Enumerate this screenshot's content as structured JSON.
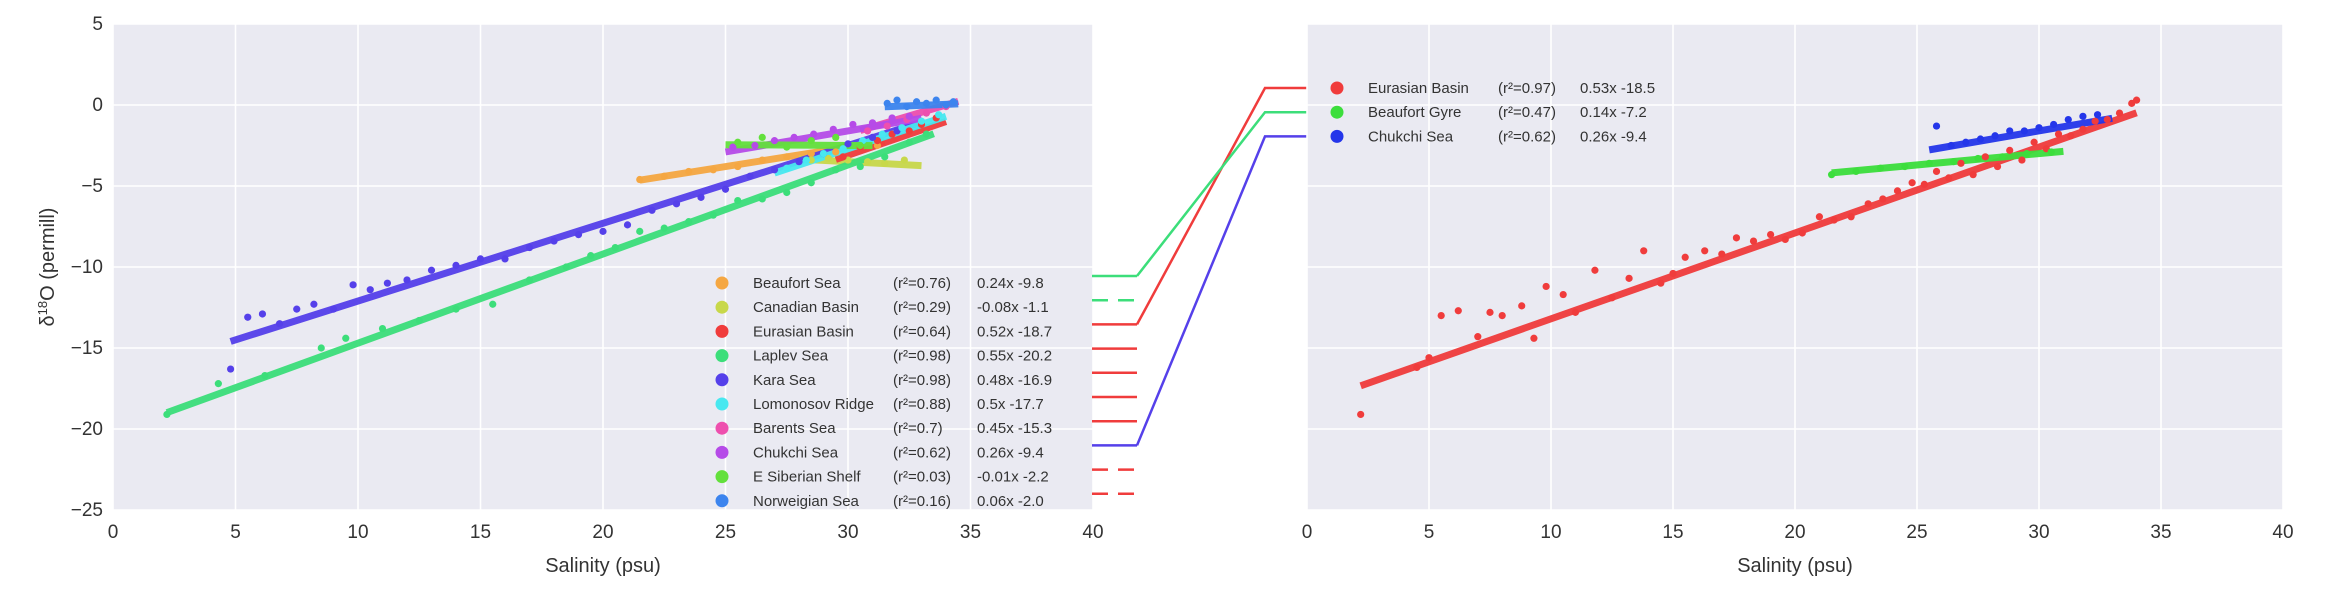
{
  "chart_data": [
    {
      "type": "scatter",
      "title": "",
      "xlabel": "Salinity (psu)",
      "ylabel_prefix": "δ",
      "ylabel_sup": "18",
      "ylabel_suffix": "O (permill)",
      "xlim": [
        0,
        40
      ],
      "ylim": [
        -25,
        5
      ],
      "xticks": [
        0,
        5,
        10,
        15,
        20,
        25,
        30,
        35,
        40
      ],
      "yticks": [
        5,
        0,
        -5,
        -10,
        -15,
        -20,
        -25
      ],
      "grid": true,
      "legend_position": "lower-right",
      "series": [
        {
          "name": "Beaufort Sea",
          "r2": "(r²=0.76)",
          "fit_label": "0.24x -9.8",
          "color": "#f5a742",
          "slope": 0.24,
          "intercept": -9.8,
          "fit_x": [
            21.5,
            31.5
          ],
          "points": [
            [
              21.5,
              -4.6
            ],
            [
              22.5,
              -4.4
            ],
            [
              23.5,
              -4.1
            ],
            [
              24.5,
              -4.0
            ],
            [
              25.5,
              -3.8
            ],
            [
              26.5,
              -3.4
            ],
            [
              27.5,
              -3.2
            ],
            [
              28.5,
              -3.0
            ],
            [
              29.5,
              -2.9
            ],
            [
              30.5,
              -2.6
            ],
            [
              31.2,
              -2.5
            ]
          ]
        },
        {
          "name": "Canadian Basin",
          "r2": "(r²=0.29)",
          "fit_label": "-0.08x -1.1",
          "color": "#c8d84a",
          "slope": -0.08,
          "intercept": -1.1,
          "fit_x": [
            28.0,
            33.0
          ],
          "points": [
            [
              28.5,
              -3.4
            ],
            [
              29.2,
              -3.3
            ],
            [
              30.0,
              -3.4
            ],
            [
              30.8,
              -3.5
            ],
            [
              31.5,
              -3.6
            ],
            [
              32.3,
              -3.4
            ]
          ]
        },
        {
          "name": "Eurasian Basin",
          "r2": "(r²=0.64)",
          "fit_label": "0.52x -18.7",
          "color": "#f03c3c",
          "slope": 0.52,
          "intercept": -18.7,
          "fit_x": [
            29.5,
            34.0
          ],
          "points": [
            [
              29.8,
              -3.2
            ],
            [
              30.5,
              -2.6
            ],
            [
              31.2,
              -2.2
            ],
            [
              31.8,
              -1.8
            ],
            [
              32.5,
              -1.6
            ],
            [
              33.0,
              -1.2
            ],
            [
              33.6,
              -0.8
            ]
          ]
        },
        {
          "name": "Laplev Sea",
          "r2": "(r²=0.98)",
          "fit_label": "0.55x -20.2",
          "color": "#3cde7a",
          "slope": 0.55,
          "intercept": -20.2,
          "fit_x": [
            2.2,
            33.5
          ],
          "points": [
            [
              2.2,
              -19.1
            ],
            [
              4.3,
              -17.2
            ],
            [
              6.2,
              -16.7
            ],
            [
              8.5,
              -15.0
            ],
            [
              9.5,
              -14.4
            ],
            [
              11.0,
              -13.8
            ],
            [
              12.5,
              -13.3
            ],
            [
              14.0,
              -12.6
            ],
            [
              15.5,
              -12.3
            ],
            [
              17.0,
              -10.8
            ],
            [
              18.5,
              -10.0
            ],
            [
              19.5,
              -9.3
            ],
            [
              20.5,
              -8.8
            ],
            [
              21.5,
              -7.8
            ],
            [
              22.5,
              -7.6
            ],
            [
              23.5,
              -7.2
            ],
            [
              24.5,
              -6.8
            ],
            [
              25.5,
              -5.9
            ],
            [
              26.5,
              -5.8
            ],
            [
              27.5,
              -5.4
            ],
            [
              28.5,
              -4.8
            ],
            [
              29.5,
              -4.0
            ],
            [
              30.5,
              -3.8
            ],
            [
              31.5,
              -3.2
            ],
            [
              32.5,
              -2.3
            ],
            [
              33.2,
              -1.8
            ]
          ]
        },
        {
          "name": "Kara Sea",
          "r2": "(r²=0.98)",
          "fit_label": "0.48x -16.9",
          "color": "#5540ea",
          "slope": 0.48,
          "intercept": -16.9,
          "fit_x": [
            4.8,
            33.0
          ],
          "points": [
            [
              4.8,
              -16.3
            ],
            [
              5.5,
              -13.1
            ],
            [
              6.1,
              -12.9
            ],
            [
              6.8,
              -13.5
            ],
            [
              7.5,
              -12.6
            ],
            [
              8.2,
              -12.3
            ],
            [
              9.0,
              -12.6
            ],
            [
              9.8,
              -11.1
            ],
            [
              10.5,
              -11.4
            ],
            [
              11.2,
              -11.0
            ],
            [
              12.0,
              -10.8
            ],
            [
              13.0,
              -10.2
            ],
            [
              14.0,
              -9.9
            ],
            [
              15.0,
              -9.5
            ],
            [
              16.0,
              -9.5
            ],
            [
              17.0,
              -8.8
            ],
            [
              18.0,
              -8.4
            ],
            [
              19.0,
              -8.0
            ],
            [
              20.0,
              -7.8
            ],
            [
              21.0,
              -7.4
            ],
            [
              22.0,
              -6.5
            ],
            [
              23.0,
              -6.1
            ],
            [
              24.0,
              -5.7
            ],
            [
              25.0,
              -5.2
            ],
            [
              26.0,
              -4.4
            ],
            [
              27.0,
              -4.0
            ],
            [
              28.0,
              -3.5
            ],
            [
              29.0,
              -3.0
            ],
            [
              30.0,
              -2.4
            ],
            [
              31.0,
              -2.0
            ],
            [
              32.0,
              -1.6
            ]
          ]
        },
        {
          "name": "Lomonosov Ridge",
          "r2": "(r²=0.88)",
          "fit_label": "0.5x -17.7",
          "color": "#48e8f0",
          "slope": 0.5,
          "intercept": -17.7,
          "fit_x": [
            27.0,
            34.0
          ],
          "points": [
            [
              27.5,
              -3.9
            ],
            [
              28.3,
              -3.4
            ],
            [
              29.0,
              -3.0
            ],
            [
              29.8,
              -2.7
            ],
            [
              30.6,
              -2.2
            ],
            [
              31.4,
              -1.8
            ],
            [
              32.2,
              -1.4
            ],
            [
              33.0,
              -1.0
            ],
            [
              33.7,
              -0.6
            ]
          ]
        },
        {
          "name": "Barents Sea",
          "r2": "(r²=0.7)",
          "fit_label": "0.45x -15.3",
          "color": "#ee4fae",
          "slope": 0.45,
          "intercept": -15.3,
          "fit_x": [
            30.5,
            34.5
          ],
          "points": [
            [
              30.8,
              -1.6
            ],
            [
              31.6,
              -1.3
            ],
            [
              32.4,
              -0.9
            ],
            [
              33.2,
              -0.5
            ],
            [
              34.0,
              -0.1
            ]
          ]
        },
        {
          "name": "Chukchi Sea",
          "r2": "(r²=0.62)",
          "fit_label": "0.26x -9.4",
          "color": "#b64be8",
          "slope": 0.26,
          "intercept": -9.4,
          "fit_x": [
            25.0,
            33.0
          ],
          "points": [
            [
              25.3,
              -2.6
            ],
            [
              26.2,
              -2.5
            ],
            [
              27.0,
              -2.2
            ],
            [
              27.8,
              -2.0
            ],
            [
              28.6,
              -1.8
            ],
            [
              29.4,
              -1.5
            ],
            [
              30.2,
              -1.2
            ],
            [
              31.0,
              -1.1
            ],
            [
              31.8,
              -0.8
            ],
            [
              32.5,
              -0.7
            ]
          ]
        },
        {
          "name": "E Siberian Shelf",
          "r2": "(r²=0.03)",
          "fit_label": "-0.01x -2.2",
          "color": "#63e03c",
          "slope": -0.01,
          "intercept": -2.2,
          "fit_x": [
            25.0,
            31.0
          ],
          "points": [
            [
              25.5,
              -2.3
            ],
            [
              26.5,
              -2.0
            ],
            [
              27.5,
              -2.6
            ],
            [
              28.5,
              -2.2
            ],
            [
              29.5,
              -2.0
            ],
            [
              30.5,
              -2.5
            ]
          ]
        },
        {
          "name": "Norweigian Sea",
          "r2": "(r²=0.16)",
          "fit_label": "0.06x -2.0",
          "color": "#3c84ee",
          "slope": 0.06,
          "intercept": -2.0,
          "fit_x": [
            31.5,
            34.5
          ],
          "points": [
            [
              31.6,
              0.1
            ],
            [
              32.0,
              0.3
            ],
            [
              32.4,
              -0.1
            ],
            [
              32.8,
              0.2
            ],
            [
              33.2,
              0.1
            ],
            [
              33.6,
              0.3
            ],
            [
              34.0,
              0.0
            ],
            [
              34.3,
              0.2
            ]
          ]
        }
      ]
    },
    {
      "type": "scatter",
      "title": "",
      "xlabel": "Salinity (psu)",
      "xlim": [
        0,
        40
      ],
      "ylim": [
        -25,
        5
      ],
      "xticks": [
        0,
        5,
        10,
        15,
        20,
        25,
        30,
        35,
        40
      ],
      "yticks": [
        5,
        0,
        -5,
        -10,
        -15,
        -20,
        -25
      ],
      "grid": true,
      "legend_position": "upper-left",
      "series": [
        {
          "name": "Eurasian Basin",
          "r2": "(r²=0.97)",
          "fit_label": "0.53x -18.5",
          "color": "#f03c3c",
          "slope": 0.53,
          "intercept": -18.5,
          "fit_x": [
            2.2,
            34.0
          ],
          "points": [
            [
              2.2,
              -19.1
            ],
            [
              4.5,
              -16.2
            ],
            [
              5.0,
              -15.6
            ],
            [
              5.5,
              -13.0
            ],
            [
              6.2,
              -12.7
            ],
            [
              7.0,
              -14.3
            ],
            [
              7.5,
              -12.8
            ],
            [
              8.0,
              -13.0
            ],
            [
              8.8,
              -12.4
            ],
            [
              9.3,
              -14.4
            ],
            [
              9.8,
              -11.2
            ],
            [
              10.5,
              -11.7
            ],
            [
              11.0,
              -12.8
            ],
            [
              11.8,
              -10.2
            ],
            [
              12.5,
              -11.9
            ],
            [
              13.2,
              -10.7
            ],
            [
              13.8,
              -9.0
            ],
            [
              14.5,
              -11.0
            ],
            [
              15.0,
              -10.4
            ],
            [
              15.5,
              -9.4
            ],
            [
              16.3,
              -9.0
            ],
            [
              17.0,
              -9.2
            ],
            [
              17.6,
              -8.2
            ],
            [
              18.3,
              -8.4
            ],
            [
              19.0,
              -8.0
            ],
            [
              19.6,
              -8.3
            ],
            [
              20.3,
              -7.9
            ],
            [
              21.0,
              -6.9
            ],
            [
              21.6,
              -7.1
            ],
            [
              22.3,
              -6.9
            ],
            [
              23.0,
              -6.1
            ],
            [
              23.6,
              -5.8
            ],
            [
              24.2,
              -5.3
            ],
            [
              24.8,
              -4.8
            ],
            [
              25.3,
              -4.9
            ],
            [
              25.8,
              -4.1
            ],
            [
              26.3,
              -4.5
            ],
            [
              26.8,
              -3.6
            ],
            [
              27.3,
              -4.3
            ],
            [
              27.8,
              -3.2
            ],
            [
              28.3,
              -3.8
            ],
            [
              28.8,
              -2.8
            ],
            [
              29.3,
              -3.4
            ],
            [
              29.8,
              -2.3
            ],
            [
              30.3,
              -2.7
            ],
            [
              30.8,
              -1.8
            ],
            [
              31.3,
              -1.9
            ],
            [
              31.8,
              -1.5
            ],
            [
              32.3,
              -1.0
            ],
            [
              32.8,
              -0.9
            ],
            [
              33.3,
              -0.5
            ],
            [
              33.8,
              0.1
            ],
            [
              34.0,
              0.3
            ]
          ]
        },
        {
          "name": "Beaufort Gyre",
          "r2": "(r²=0.47)",
          "fit_label": "0.14x -7.2",
          "color": "#3cde3c",
          "slope": 0.14,
          "intercept": -7.2,
          "fit_x": [
            21.5,
            31.0
          ],
          "points": [
            [
              21.5,
              -4.3
            ],
            [
              22.5,
              -4.1
            ],
            [
              23.5,
              -3.9
            ],
            [
              24.5,
              -3.8
            ],
            [
              25.5,
              -3.6
            ],
            [
              26.5,
              -3.5
            ],
            [
              27.5,
              -3.3
            ],
            [
              28.5,
              -3.2
            ],
            [
              29.5,
              -3.0
            ],
            [
              30.5,
              -2.9
            ]
          ]
        },
        {
          "name": "Chukchi Sea",
          "r2": "(r²=0.62)",
          "fit_label": "0.26x -9.4",
          "color": "#2436ea",
          "slope": 0.26,
          "intercept": -9.4,
          "fit_x": [
            25.5,
            33.0
          ],
          "points": [
            [
              25.8,
              -1.3
            ],
            [
              26.4,
              -2.5
            ],
            [
              27.0,
              -2.3
            ],
            [
              27.6,
              -2.1
            ],
            [
              28.2,
              -1.9
            ],
            [
              28.8,
              -1.6
            ],
            [
              29.4,
              -1.6
            ],
            [
              30.0,
              -1.4
            ],
            [
              30.6,
              -1.2
            ],
            [
              31.2,
              -0.9
            ],
            [
              31.8,
              -0.7
            ],
            [
              32.4,
              -0.6
            ]
          ]
        }
      ]
    }
  ],
  "connector_colors": [
    "#3cde7a",
    "#3cde7a",
    "#f03c3c",
    "#f03c3c",
    "#f03c3c",
    "#f03c3c",
    "#f03c3c",
    "#5540ea",
    "#f03c3c",
    "#f03c3c"
  ],
  "connector_styles": [
    "solid",
    "dashed",
    "solid",
    "solid",
    "solid",
    "solid",
    "solid",
    "solid",
    "dashed",
    "dashed"
  ],
  "colors": {
    "axes_bg": "#eaeaf2",
    "grid": "#ffffff",
    "text": "#333333"
  }
}
